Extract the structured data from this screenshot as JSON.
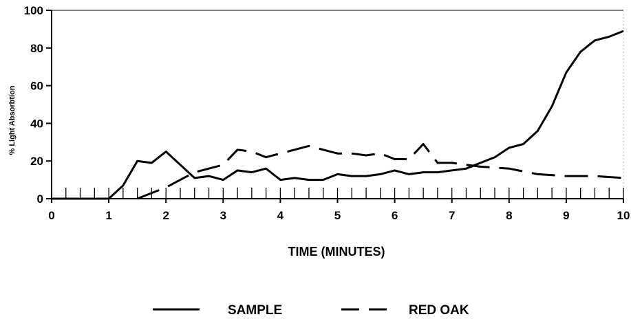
{
  "chart_data": {
    "type": "line",
    "title": "",
    "xlabel": "TIME (MINUTES)",
    "ylabel": "% Light Absorbtion",
    "xlim": [
      0,
      10
    ],
    "ylim": [
      0,
      100
    ],
    "x_ticks": [
      "0",
      "1",
      "2",
      "3",
      "4",
      "5",
      "6",
      "7",
      "8",
      "9",
      "10"
    ],
    "y_ticks": [
      "0",
      "20",
      "40",
      "60",
      "80",
      "100"
    ],
    "grid": false,
    "legend_position": "bottom",
    "series": [
      {
        "name": "SAMPLE",
        "style": "solid",
        "x": [
          0,
          0.5,
          1.0,
          1.25,
          1.5,
          1.75,
          2.0,
          2.25,
          2.5,
          2.75,
          3.0,
          3.25,
          3.5,
          3.75,
          4.0,
          4.25,
          4.5,
          4.75,
          5.0,
          5.25,
          5.5,
          5.75,
          6.0,
          6.25,
          6.5,
          6.75,
          7.0,
          7.25,
          7.5,
          7.75,
          8.0,
          8.25,
          8.5,
          8.75,
          9.0,
          9.25,
          9.5,
          9.75,
          10.0
        ],
        "values": [
          0,
          0,
          0,
          7,
          20,
          19,
          25,
          18,
          11,
          12,
          10,
          15,
          14,
          16,
          10,
          11,
          10,
          10,
          13,
          12,
          12,
          13,
          15,
          13,
          14,
          14,
          15,
          16,
          19,
          22,
          27,
          29,
          36,
          49,
          67,
          78,
          84,
          86,
          89
        ]
      },
      {
        "name": "RED OAK",
        "style": "dashed",
        "x": [
          1.5,
          2.0,
          2.5,
          3.0,
          3.25,
          3.5,
          3.75,
          4.0,
          4.25,
          4.5,
          4.75,
          5.0,
          5.25,
          5.5,
          5.75,
          6.0,
          6.25,
          6.5,
          6.75,
          7.0,
          7.25,
          7.5,
          8.0,
          8.5,
          9.0,
          9.5,
          10.0
        ],
        "values": [
          0,
          6,
          14,
          18,
          26,
          25,
          22,
          24,
          26,
          28,
          26,
          24,
          24,
          23,
          24,
          21,
          21,
          29,
          19,
          19,
          18,
          17,
          16,
          13,
          12,
          12,
          11
        ]
      }
    ]
  },
  "colors": {
    "line": "#000000",
    "background": "#ffffff"
  }
}
